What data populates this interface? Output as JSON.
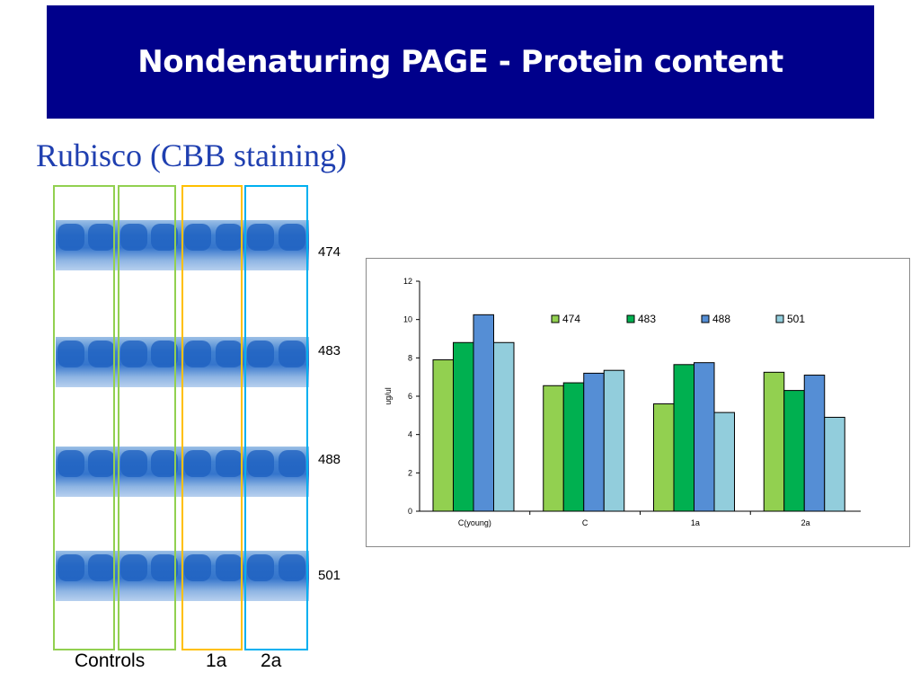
{
  "slide": {
    "title": "Nondenaturing PAGE - Protein content",
    "subtitle": "Rubisco  (CBB  staining)"
  },
  "gel": {
    "row_labels": [
      "474",
      "483",
      "488",
      "501"
    ],
    "group_labels": {
      "controls": "Controls",
      "g1a": "1a",
      "g2a": "2a"
    },
    "group_colors": {
      "controls": "#92d050",
      "g1a": "#ffc000",
      "g2a": "#00b0f0"
    },
    "lane_count": 8
  },
  "chart_data": {
    "type": "bar",
    "categories": [
      "C(young)",
      "C",
      "1a",
      "2a"
    ],
    "series": [
      {
        "name": "474",
        "color": "#92d050",
        "values": [
          7.9,
          6.55,
          5.6,
          7.25
        ]
      },
      {
        "name": "483",
        "color": "#00b050",
        "values": [
          8.8,
          6.7,
          7.65,
          6.3
        ]
      },
      {
        "name": "488",
        "color": "#558ed5",
        "values": [
          10.25,
          7.2,
          7.75,
          7.1
        ]
      },
      {
        "name": "501",
        "color": "#92cddc",
        "values": [
          8.8,
          7.35,
          5.15,
          4.9
        ]
      }
    ],
    "ylabel": "ug/ul",
    "ylim": [
      0,
      12
    ],
    "yticks": [
      0,
      2,
      4,
      6,
      8,
      10,
      12
    ],
    "legend_position": "top-right",
    "grid": false
  }
}
